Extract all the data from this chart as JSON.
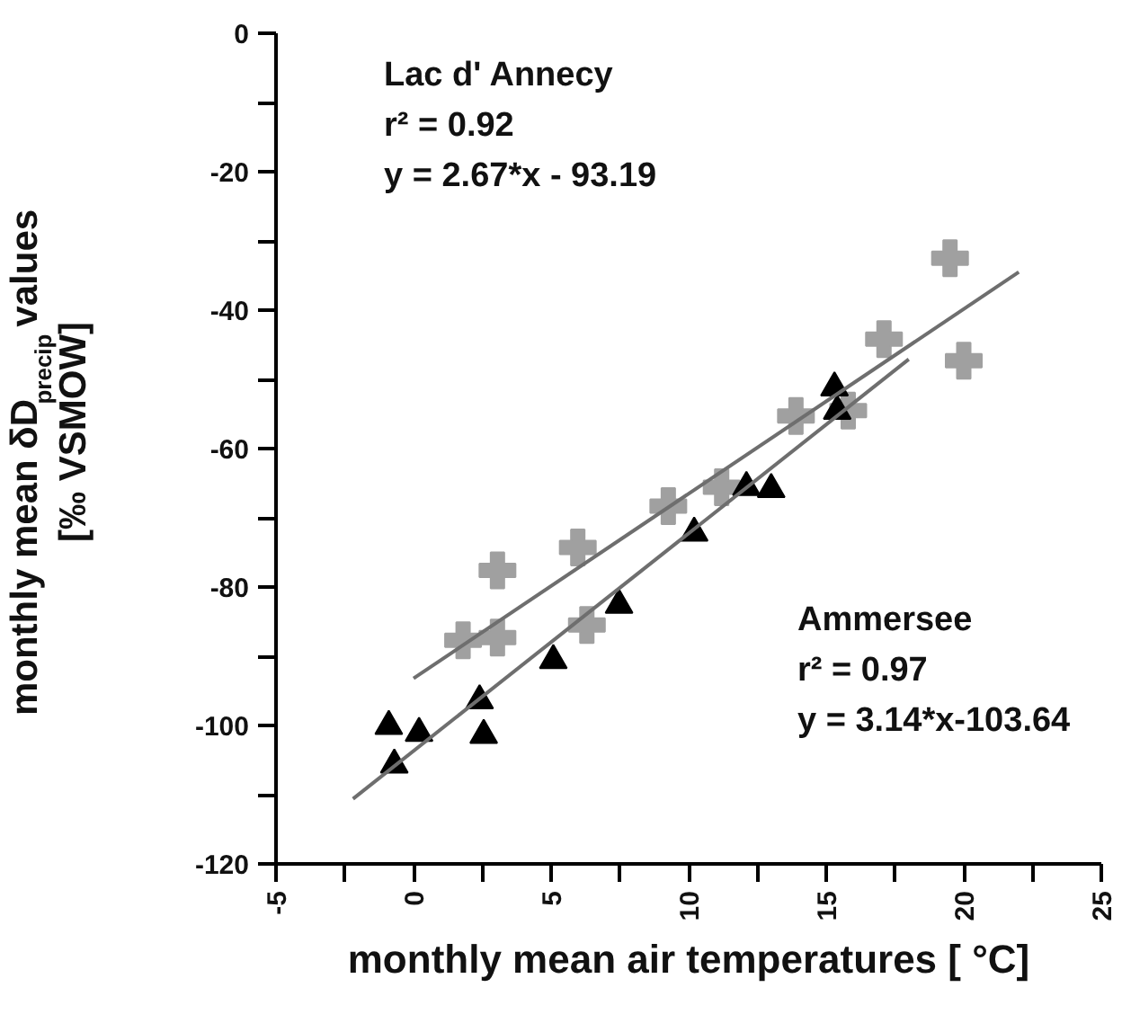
{
  "chart_data": {
    "type": "scatter",
    "xlabel": "monthly mean air temperatures [ °C]",
    "ylabel": "monthly mean δD$_{precip}$ values\n[‰ VSMOW]",
    "xlim": [
      -5,
      25
    ],
    "ylim": [
      -120,
      0
    ],
    "xticks": [
      -5,
      {
        "value": -2.5,
        "label": null
      },
      0,
      {
        "value": 2.5,
        "label": null
      },
      5,
      {
        "value": 7.5,
        "label": null
      },
      10,
      {
        "value": 12.5,
        "label": null
      },
      15,
      {
        "value": 17.5,
        "label": null
      },
      20,
      {
        "value": 22.5,
        "label": null
      },
      25
    ],
    "yticks": [
      -120,
      {
        "value": -110,
        "label": null
      },
      -100,
      {
        "value": -90,
        "label": null
      },
      -80,
      {
        "value": -70,
        "label": null
      },
      -60,
      {
        "value": -50,
        "label": null
      },
      -40,
      {
        "value": -30,
        "label": null
      },
      -20,
      {
        "value": -10,
        "label": null
      },
      0
    ],
    "grid": false,
    "series": [
      {
        "marker": "cross",
        "color": "#a0a0a0",
        "x": [
          1.8,
          3.05,
          3.05,
          5.97,
          6.3,
          9.26,
          11.2,
          13.9,
          15.8,
          17.1,
          20.0,
          19.5
        ],
        "values": [
          -87.7,
          -87.3,
          -77.6,
          -74.3,
          -85.5,
          -68.3,
          -65.6,
          -55.3,
          -54.5,
          -44.2,
          -47.3,
          -32.5
        ]
      },
      {
        "marker": "triangle",
        "color": "#000000",
        "x": [
          -0.9,
          0.2,
          -0.7,
          2.4,
          2.55,
          5.08,
          7.47,
          10.2,
          12.1,
          13.0,
          15.3,
          15.4
        ],
        "values": [
          -100.1,
          -101.1,
          -105.7,
          -96.4,
          -101.4,
          -90.6,
          -82.6,
          -72.2,
          -65.6,
          -65.9,
          -51.2,
          -54.6
        ]
      },
      {
        "type": "line",
        "color": "#6e6e6e",
        "x": [
          0,
          22
        ],
        "values": [
          -93.2,
          -34.5
        ]
      },
      {
        "type": "line",
        "color": "#6e6e6e",
        "x": [
          -2.2,
          18
        ],
        "values": [
          -110.6,
          -47.1
        ]
      }
    ],
    "annotations": [
      "Lac d' Annecy",
      "r² = 0.92",
      "y = 2.67*x - 93.19",
      "Ammersee",
      "r² = 0.97",
      "y = 3.14*x-103.64"
    ]
  }
}
